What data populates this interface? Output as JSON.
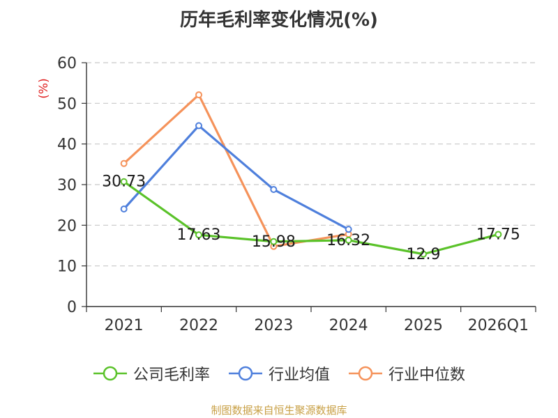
{
  "chart_data": {
    "type": "line",
    "title": "历年毛利率变化情况(%)",
    "ylabel": "(%)",
    "xlabel": "",
    "categories": [
      "2021",
      "2022",
      "2023",
      "2024",
      "2025",
      "2026Q1"
    ],
    "ylim": [
      0,
      60
    ],
    "yticks": [
      0,
      10,
      20,
      30,
      40,
      50,
      60
    ],
    "grid": true,
    "legend_position": "bottom",
    "series": [
      {
        "name": "公司毛利率",
        "color": "#5ac229",
        "values": [
          30.73,
          17.63,
          15.98,
          16.32,
          12.9,
          17.75
        ],
        "labels": [
          "30.73",
          "17.63",
          "15.98",
          "16.32",
          "12.9",
          "17.75"
        ]
      },
      {
        "name": "行业均值",
        "color": "#4e7fdc",
        "values": [
          24.0,
          44.5,
          28.8,
          19.0,
          null,
          null
        ]
      },
      {
        "name": "行业中位数",
        "color": "#f5925a",
        "values": [
          35.2,
          52.1,
          14.8,
          17.8,
          null,
          null
        ]
      }
    ]
  },
  "footer": {
    "source": "制图数据来自恒生聚源数据库"
  }
}
